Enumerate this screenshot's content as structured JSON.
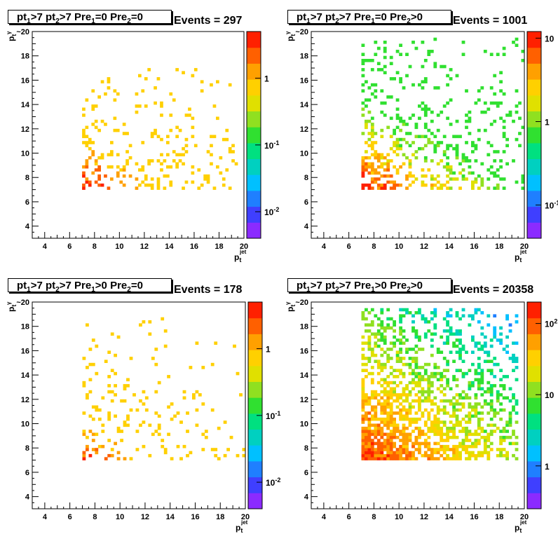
{
  "chart_data": [
    {
      "type": "heatmap",
      "title_parts": {
        "pt1": "pt",
        "s1": "1",
        "c1": ">7  ",
        "pt2": "pt",
        "s2": "2",
        "c2": ">7  ",
        "pre1": "Pre",
        "s3": "1",
        "c3": "=0  ",
        "pre2": "Pre",
        "s4": "2",
        "c4": "=0"
      },
      "events_label": "Events = 297",
      "xlabel_main": "p",
      "xlabel_sub": "t",
      "xlabel_sup": "jet",
      "ylabel_main": "p",
      "ylabel_sub": "t",
      "ylabel_sup": "γ",
      "xlim": [
        3,
        20
      ],
      "ylim": [
        3,
        20
      ],
      "xticks": [
        "4",
        "6",
        "8",
        "10",
        "12",
        "14",
        "16",
        "18",
        "20"
      ],
      "yticks": [
        "4",
        "6",
        "8",
        "10",
        "12",
        "14",
        "16",
        "18",
        "~20"
      ],
      "zscale": "log",
      "zlim": [
        0.004,
        5
      ],
      "zticks": [
        {
          "v": 1,
          "main": "1",
          "sup": ""
        },
        {
          "v": 0.1,
          "main": "10",
          "sup": "-1"
        },
        {
          "v": 0.01,
          "main": "10",
          "sup": "-2"
        }
      ],
      "dist": {
        "density": 0.4,
        "maxDensity": 0.65,
        "decayX": 3.5,
        "decayY": 2.2,
        "xmax": 19.5,
        "ymax": 17,
        "maxZ": 4,
        "minZ": 0.7,
        "seed": 11
      },
      "palette": [
        "#8b2bff",
        "#3f3fff",
        "#1f7fff",
        "#00c0ff",
        "#00d0c0",
        "#00e080",
        "#30e030",
        "#90e020",
        "#e0e000",
        "#ffd000",
        "#ffa000",
        "#ff6000",
        "#ff2000"
      ]
    },
    {
      "type": "heatmap",
      "title_parts": {
        "pt1": "pt",
        "s1": "1",
        "c1": ">7  ",
        "pt2": "pt",
        "s2": "2",
        "c2": ">7  ",
        "pre1": "Pre",
        "s3": "1",
        "c3": "=0  ",
        "pre2": "Pre",
        "s4": "2",
        "c4": ">0"
      },
      "events_label": "Events = 1001",
      "xlabel_main": "p",
      "xlabel_sub": "t",
      "xlabel_sup": "jet",
      "ylabel_main": "p",
      "ylabel_sub": "t",
      "ylabel_sup": "γ",
      "xlim": [
        3,
        20
      ],
      "ylim": [
        3,
        20
      ],
      "xticks": [
        "4",
        "6",
        "8",
        "10",
        "12",
        "14",
        "16",
        "18",
        "20"
      ],
      "yticks": [
        "4",
        "6",
        "8",
        "10",
        "12",
        "14",
        "16",
        "18",
        "~20"
      ],
      "zscale": "log",
      "zlim": [
        0.04,
        12
      ],
      "zticks": [
        {
          "v": 10,
          "main": "10",
          "sup": ""
        },
        {
          "v": 1,
          "main": "1",
          "sup": ""
        },
        {
          "v": 0.1,
          "main": "10",
          "sup": "-1"
        }
      ],
      "dist": {
        "density": 0.6,
        "maxDensity": 0.95,
        "decayX": 4.5,
        "decayY": 2.6,
        "xmax": 20,
        "ymax": 19.5,
        "maxZ": 10,
        "minZ": 0.6,
        "seed": 23
      },
      "palette": [
        "#8b2bff",
        "#3f3fff",
        "#1f7fff",
        "#00c0ff",
        "#00d0c0",
        "#00e080",
        "#30e030",
        "#90e020",
        "#e0e000",
        "#ffd000",
        "#ffa000",
        "#ff6000",
        "#ff2000"
      ]
    },
    {
      "type": "heatmap",
      "title_parts": {
        "pt1": "pt",
        "s1": "1",
        "c1": ">7  ",
        "pt2": "pt",
        "s2": "2",
        "c2": ">7  ",
        "pre1": "Pre",
        "s3": "1",
        "c3": ">0  ",
        "pre2": "Pre",
        "s4": "2",
        "c4": "=0"
      },
      "events_label": "Events = 178",
      "xlabel_main": "p",
      "xlabel_sub": "t",
      "xlabel_sup": "jet",
      "ylabel_main": "p",
      "ylabel_sub": "t",
      "ylabel_sup": "γ",
      "xlim": [
        3,
        20
      ],
      "ylim": [
        3,
        20
      ],
      "xticks": [
        "4",
        "6",
        "8",
        "10",
        "12",
        "14",
        "16",
        "18",
        "20"
      ],
      "yticks": [
        "4",
        "6",
        "8",
        "10",
        "12",
        "14",
        "16",
        "18",
        "~20"
      ],
      "zscale": "log",
      "zlim": [
        0.004,
        5
      ],
      "zticks": [
        {
          "v": 1,
          "main": "1",
          "sup": ""
        },
        {
          "v": 0.1,
          "main": "10",
          "sup": "-1"
        },
        {
          "v": 0.01,
          "main": "10",
          "sup": "-2"
        }
      ],
      "dist": {
        "density": 0.3,
        "maxDensity": 0.5,
        "decayX": 3.5,
        "decayY": 2.0,
        "xmax": 20,
        "ymax": 19,
        "maxZ": 3,
        "minZ": 0.7,
        "seed": 37
      },
      "palette": [
        "#8b2bff",
        "#3f3fff",
        "#1f7fff",
        "#00c0ff",
        "#00d0c0",
        "#00e080",
        "#30e030",
        "#90e020",
        "#e0e000",
        "#ffd000",
        "#ffa000",
        "#ff6000",
        "#ff2000"
      ]
    },
    {
      "type": "heatmap",
      "title_parts": {
        "pt1": "pt",
        "s1": "1",
        "c1": ">7  ",
        "pt2": "pt",
        "s2": "2",
        "c2": ">7  ",
        "pre1": "Pre",
        "s3": "1",
        "c3": ">0  ",
        "pre2": "Pre",
        "s4": "2",
        "c4": ">0"
      },
      "events_label": "Events = 20358",
      "xlabel_main": "p",
      "xlabel_sub": "t",
      "xlabel_sup": "jet",
      "ylabel_main": "p",
      "ylabel_sub": "t",
      "ylabel_sup": "γ",
      "xlim": [
        3,
        20
      ],
      "ylim": [
        3,
        20
      ],
      "xticks": [
        "4",
        "6",
        "8",
        "10",
        "12",
        "14",
        "16",
        "18",
        "20"
      ],
      "yticks": [
        "4",
        "6",
        "8",
        "10",
        "12",
        "14",
        "16",
        "18",
        "~20"
      ],
      "zscale": "log",
      "zlim": [
        0.25,
        200
      ],
      "zticks": [
        {
          "v": 100,
          "main": "10",
          "sup": "2"
        },
        {
          "v": 10,
          "main": "10",
          "sup": ""
        },
        {
          "v": 1,
          "main": "1",
          "sup": ""
        }
      ],
      "dist": {
        "density": 1.0,
        "maxDensity": 1.0,
        "decayX": 6,
        "decayY": 4.5,
        "xmax": 19.5,
        "ymax": 19.5,
        "maxZ": 130,
        "minZ": 1,
        "seed": 53
      },
      "palette": [
        "#8b2bff",
        "#3f3fff",
        "#1f7fff",
        "#00c0ff",
        "#00d0c0",
        "#00e080",
        "#30e030",
        "#90e020",
        "#e0e000",
        "#ffd000",
        "#ffa000",
        "#ff6000",
        "#ff2000"
      ]
    }
  ]
}
